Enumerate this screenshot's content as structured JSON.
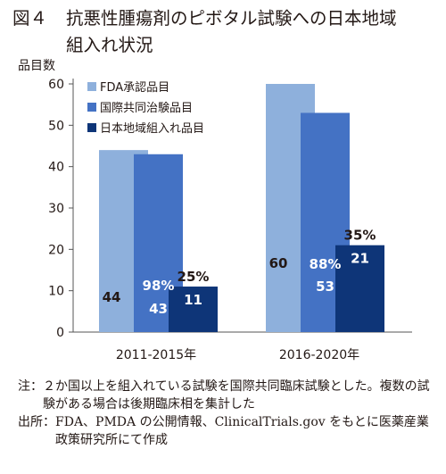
{
  "figure": {
    "number": "図４",
    "title_line1": "抗悪性腫瘍剤のピボタル試験への日本地域",
    "title_line2": "組入れ状況"
  },
  "notes": {
    "note_label": "注：",
    "note_text": "２か国以上を組入れている試験を国際共同臨床試験とした。複数の試験がある場合は後期臨床相を集計した",
    "source_label": "出所：",
    "source_text": "FDA、PMDA の公開情報、ClinicalTrials.gov をもとに医薬産業政策研究所にて作成"
  },
  "chart_data": {
    "type": "bar",
    "ylabel": "品目数",
    "ylim": [
      0,
      60
    ],
    "yticks": [
      0,
      10,
      20,
      30,
      40,
      50,
      60
    ],
    "grid": false,
    "legend_position": "top-left",
    "categories": [
      "2011-2015年",
      "2016-2020年"
    ],
    "series": [
      {
        "name": "FDA承認品目",
        "values": [
          44,
          60
        ],
        "color": "#8EB0DC",
        "labels": [
          "44",
          "60"
        ],
        "pcts": [
          "",
          ""
        ]
      },
      {
        "name": "国際共同治験品目",
        "values": [
          43,
          53
        ],
        "color": "#4472C4",
        "labels": [
          "43",
          "53"
        ],
        "pcts": [
          "98%",
          "88%"
        ]
      },
      {
        "name": "日本地域組入れ品目",
        "values": [
          11,
          21
        ],
        "color": "#0E3578",
        "labels": [
          "11",
          "21"
        ],
        "pcts": [
          "25%",
          "35%"
        ]
      }
    ]
  }
}
